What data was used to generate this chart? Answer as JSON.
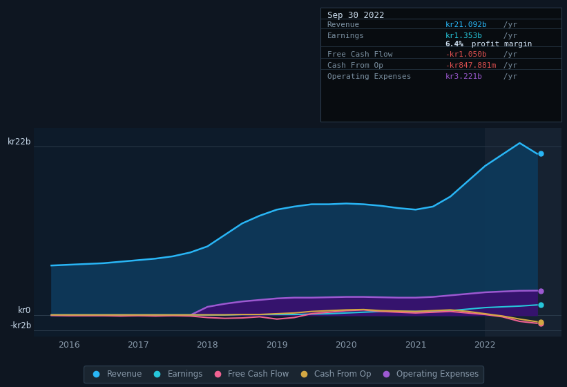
{
  "background_color": "#0e1621",
  "plot_bg_color": "#0d1b2a",
  "y_label_top": "kr22b",
  "y_label_zero": "kr0",
  "y_label_neg": "-kr2b",
  "x_ticks": [
    2016,
    2017,
    2018,
    2019,
    2020,
    2021,
    2022
  ],
  "ylim": [
    -2.8,
    24.5
  ],
  "xlim_start": 2015.5,
  "xlim_end": 2023.1,
  "highlight_x_start": 2022.0,
  "revenue_color": "#29b6f6",
  "revenue_fill": "#0d3a5c",
  "earnings_color": "#26c6da",
  "fcf_color": "#f06292",
  "cashfromop_color": "#d4a843",
  "opex_color": "#9c59d1",
  "opex_fill": "#3a1070",
  "grid_color": "#2a3a4a",
  "text_color": "#8899aa",
  "tooltip_bg": "#080c10",
  "tooltip_border": "#2a3a4a",
  "revenue_data": {
    "x": [
      2015.75,
      2016.0,
      2016.25,
      2016.5,
      2016.75,
      2017.0,
      2017.25,
      2017.5,
      2017.75,
      2018.0,
      2018.25,
      2018.5,
      2018.75,
      2019.0,
      2019.25,
      2019.5,
      2019.75,
      2020.0,
      2020.25,
      2020.5,
      2020.75,
      2021.0,
      2021.25,
      2021.5,
      2021.75,
      2022.0,
      2022.25,
      2022.5,
      2022.75
    ],
    "y": [
      6.5,
      6.6,
      6.7,
      6.8,
      7.0,
      7.2,
      7.4,
      7.7,
      8.2,
      9.0,
      10.5,
      12.0,
      13.0,
      13.8,
      14.2,
      14.5,
      14.5,
      14.6,
      14.5,
      14.3,
      14.0,
      13.8,
      14.2,
      15.5,
      17.5,
      19.5,
      21.0,
      22.5,
      21.1
    ]
  },
  "earnings_data": {
    "x": [
      2015.75,
      2016.0,
      2016.25,
      2016.5,
      2016.75,
      2017.0,
      2017.25,
      2017.5,
      2017.75,
      2018.0,
      2018.25,
      2018.5,
      2018.75,
      2019.0,
      2019.25,
      2019.5,
      2019.75,
      2020.0,
      2020.25,
      2020.5,
      2020.75,
      2021.0,
      2021.25,
      2021.5,
      2021.75,
      2022.0,
      2022.25,
      2022.5,
      2022.75
    ],
    "y": [
      0.05,
      0.05,
      0.05,
      0.05,
      0.05,
      0.05,
      0.05,
      0.05,
      0.05,
      0.05,
      0.05,
      0.1,
      0.1,
      0.1,
      0.1,
      0.15,
      0.2,
      0.3,
      0.4,
      0.5,
      0.5,
      0.5,
      0.5,
      0.6,
      0.8,
      1.0,
      1.1,
      1.2,
      1.35
    ]
  },
  "fcf_data": {
    "x": [
      2015.75,
      2016.0,
      2016.25,
      2016.5,
      2016.75,
      2017.0,
      2017.25,
      2017.5,
      2017.75,
      2018.0,
      2018.25,
      2018.5,
      2018.75,
      2019.0,
      2019.25,
      2019.5,
      2019.75,
      2020.0,
      2020.25,
      2020.5,
      2020.75,
      2021.0,
      2021.25,
      2021.5,
      2021.75,
      2022.0,
      2022.25,
      2022.5,
      2022.75
    ],
    "y": [
      0.0,
      -0.05,
      -0.05,
      -0.05,
      -0.1,
      -0.05,
      -0.1,
      -0.05,
      -0.1,
      -0.3,
      -0.4,
      -0.35,
      -0.2,
      -0.5,
      -0.3,
      0.2,
      0.4,
      0.6,
      0.7,
      0.5,
      0.4,
      0.3,
      0.4,
      0.5,
      0.3,
      0.1,
      -0.2,
      -0.8,
      -1.05
    ]
  },
  "cashfromop_data": {
    "x": [
      2015.75,
      2016.0,
      2016.25,
      2016.5,
      2016.75,
      2017.0,
      2017.25,
      2017.5,
      2017.75,
      2018.0,
      2018.25,
      2018.5,
      2018.75,
      2019.0,
      2019.25,
      2019.5,
      2019.75,
      2020.0,
      2020.25,
      2020.5,
      2020.75,
      2021.0,
      2021.25,
      2021.5,
      2021.75,
      2022.0,
      2022.25,
      2022.5,
      2022.75
    ],
    "y": [
      0.05,
      0.05,
      0.05,
      0.05,
      0.05,
      0.05,
      0.05,
      0.05,
      0.05,
      0.05,
      0.05,
      0.1,
      0.1,
      0.2,
      0.3,
      0.5,
      0.6,
      0.7,
      0.75,
      0.6,
      0.55,
      0.5,
      0.6,
      0.7,
      0.5,
      0.2,
      -0.1,
      -0.5,
      -0.85
    ]
  },
  "opex_data": {
    "x": [
      2015.75,
      2016.0,
      2016.25,
      2016.5,
      2016.75,
      2017.0,
      2017.25,
      2017.5,
      2017.75,
      2018.0,
      2018.25,
      2018.5,
      2018.75,
      2019.0,
      2019.25,
      2019.5,
      2019.75,
      2020.0,
      2020.25,
      2020.5,
      2020.75,
      2021.0,
      2021.25,
      2021.5,
      2021.75,
      2022.0,
      2022.25,
      2022.5,
      2022.75
    ],
    "y": [
      0.0,
      0.0,
      0.0,
      0.0,
      0.0,
      0.0,
      0.0,
      0.0,
      0.0,
      1.1,
      1.5,
      1.8,
      2.0,
      2.2,
      2.3,
      2.3,
      2.35,
      2.4,
      2.4,
      2.35,
      2.3,
      2.3,
      2.4,
      2.6,
      2.8,
      3.0,
      3.1,
      3.2,
      3.22
    ]
  },
  "tooltip": {
    "date": "Sep 30 2022",
    "revenue_val": "kr21.092b",
    "revenue_color": "#29b6f6",
    "earnings_val": "kr1.353b",
    "earnings_color": "#26c6da",
    "margin_val": "6.4%",
    "fcf_val": "-kr1.050b",
    "fcf_color": "#f06292",
    "cashfromop_val": "-kr847.881m",
    "cashfromop_color": "#f06292",
    "opex_val": "kr3.221b",
    "opex_color": "#9c59d1"
  },
  "legend": [
    {
      "label": "Revenue",
      "color": "#29b6f6"
    },
    {
      "label": "Earnings",
      "color": "#26c6da"
    },
    {
      "label": "Free Cash Flow",
      "color": "#f06292"
    },
    {
      "label": "Cash From Op",
      "color": "#d4a843"
    },
    {
      "label": "Operating Expenses",
      "color": "#9c59d1"
    }
  ]
}
